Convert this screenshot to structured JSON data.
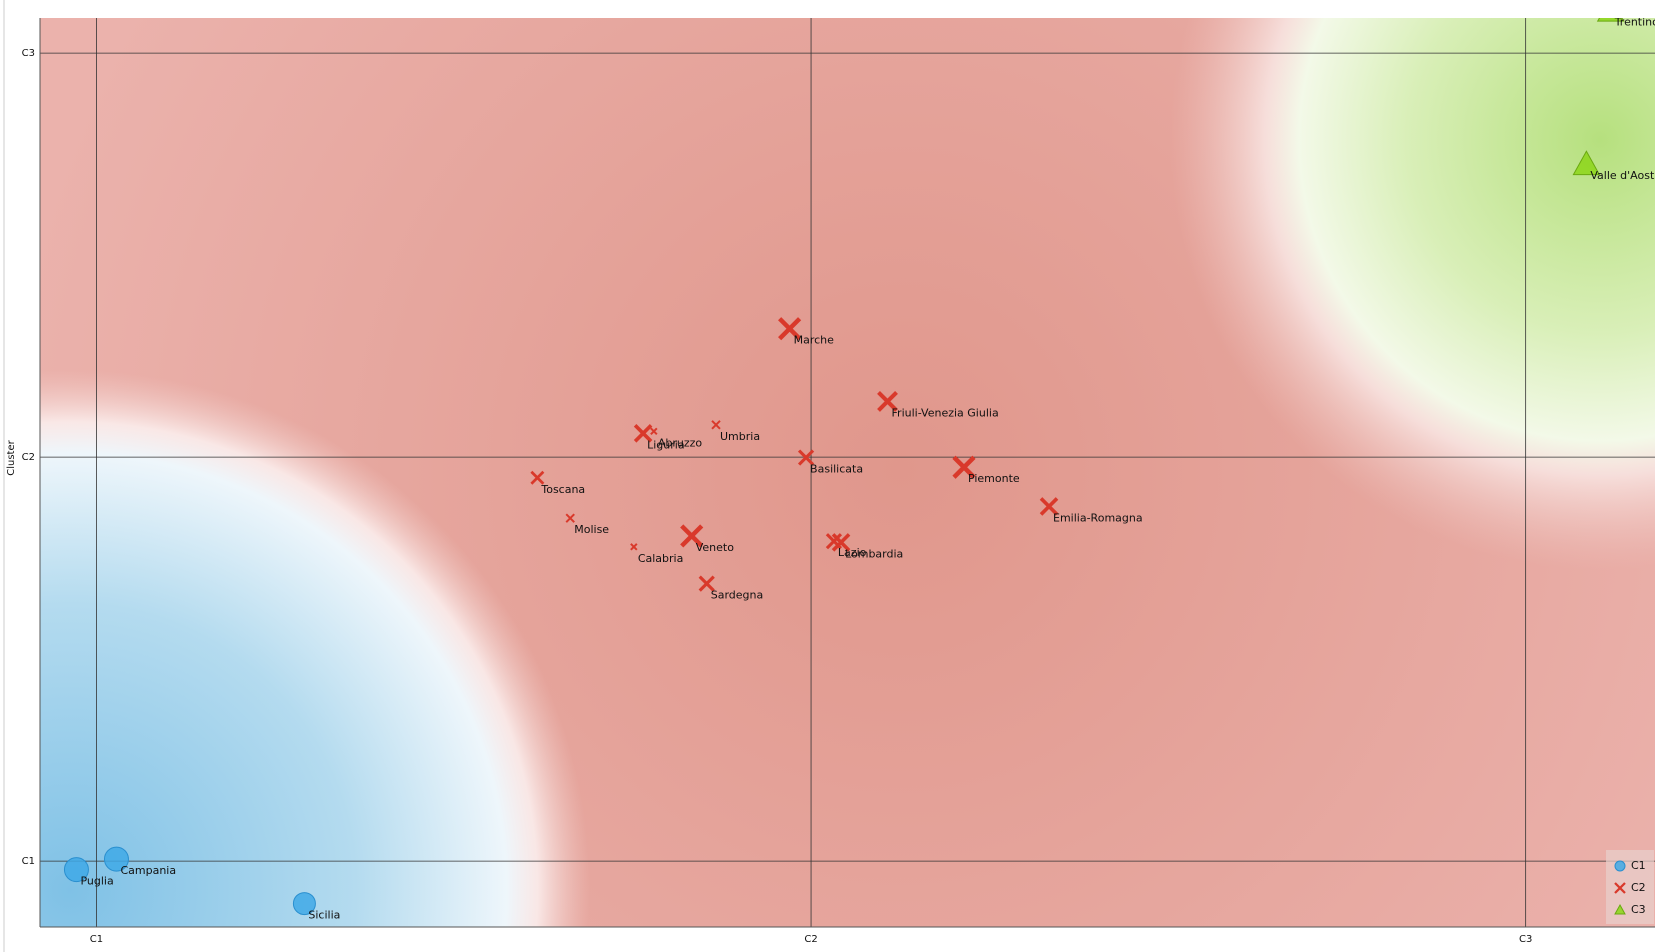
{
  "chart_data": {
    "type": "scatter",
    "y_label": "Cluster",
    "xlim": [
      0.921,
      3.181
    ],
    "ylim": [
      0.837,
      3.087
    ],
    "xticks": [
      {
        "value": 1,
        "label": "C1"
      },
      {
        "value": 2,
        "label": "C2"
      },
      {
        "value": 3,
        "label": "C3"
      }
    ],
    "yticks": [
      {
        "value": 1,
        "label": "C1"
      },
      {
        "value": 2,
        "label": "C2"
      },
      {
        "value": 3,
        "label": "C3"
      }
    ],
    "grid": true,
    "legend": "bottom-right",
    "series": [
      {
        "name": "C1",
        "color": "#3fa9e6",
        "marker": "circle",
        "x": [
          0.972,
          1.028,
          1.291
        ],
        "values": [
          0.979,
          1.005,
          0.895
        ],
        "sizes": [
          12,
          12,
          11
        ],
        "labels": [
          "Puglia",
          "Campania",
          "Sicilia"
        ]
      },
      {
        "name": "C2",
        "color": "#d9392b",
        "marker": "cross",
        "x": [
          1.97,
          2.107,
          1.765,
          1.78,
          1.867,
          1.993,
          2.214,
          2.333,
          1.617,
          1.663,
          1.752,
          1.833,
          2.032,
          2.042,
          1.854
        ],
        "values": [
          2.318,
          2.138,
          2.059,
          2.064,
          2.08,
          1.999,
          1.975,
          1.878,
          1.949,
          1.849,
          1.778,
          1.805,
          1.792,
          1.789,
          1.687
        ],
        "sizes": [
          10,
          9,
          8,
          3,
          4,
          7,
          10,
          8,
          6,
          4,
          3,
          10,
          7,
          8,
          7
        ],
        "labels": [
          "Marche",
          "Friuli-Venezia Giulia",
          "Liguria",
          "Abruzzo",
          "Umbria",
          "Basilicata",
          "Piemonte",
          "Emilia-Romagna",
          "Toscana",
          "Molise",
          "Calabria",
          "Veneto",
          "Lazio",
          "Lombardia",
          "Sardegna"
        ]
      },
      {
        "name": "C3",
        "color": "#8fd61f",
        "marker": "triangle",
        "x": [
          3.085,
          3.119
        ],
        "values": [
          2.725,
          3.105
        ],
        "sizes": [
          13,
          13
        ],
        "labels": [
          "Valle d'Aosta",
          "Trentino-Alto Adige"
        ]
      }
    ]
  }
}
